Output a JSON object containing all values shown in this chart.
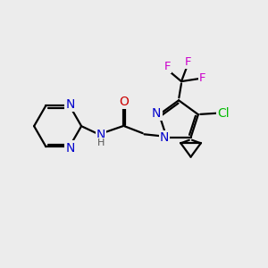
{
  "bg_color": "#ececec",
  "bond_color": "#000000",
  "bond_width": 1.6,
  "atom_colors": {
    "N": "#0000cc",
    "O": "#cc0000",
    "Cl": "#00bb00",
    "F": "#cc00cc",
    "C": "#000000",
    "H": "#555555"
  },
  "font_size": 9.5,
  "fig_size": [
    3.0,
    3.0
  ],
  "dpi": 100
}
